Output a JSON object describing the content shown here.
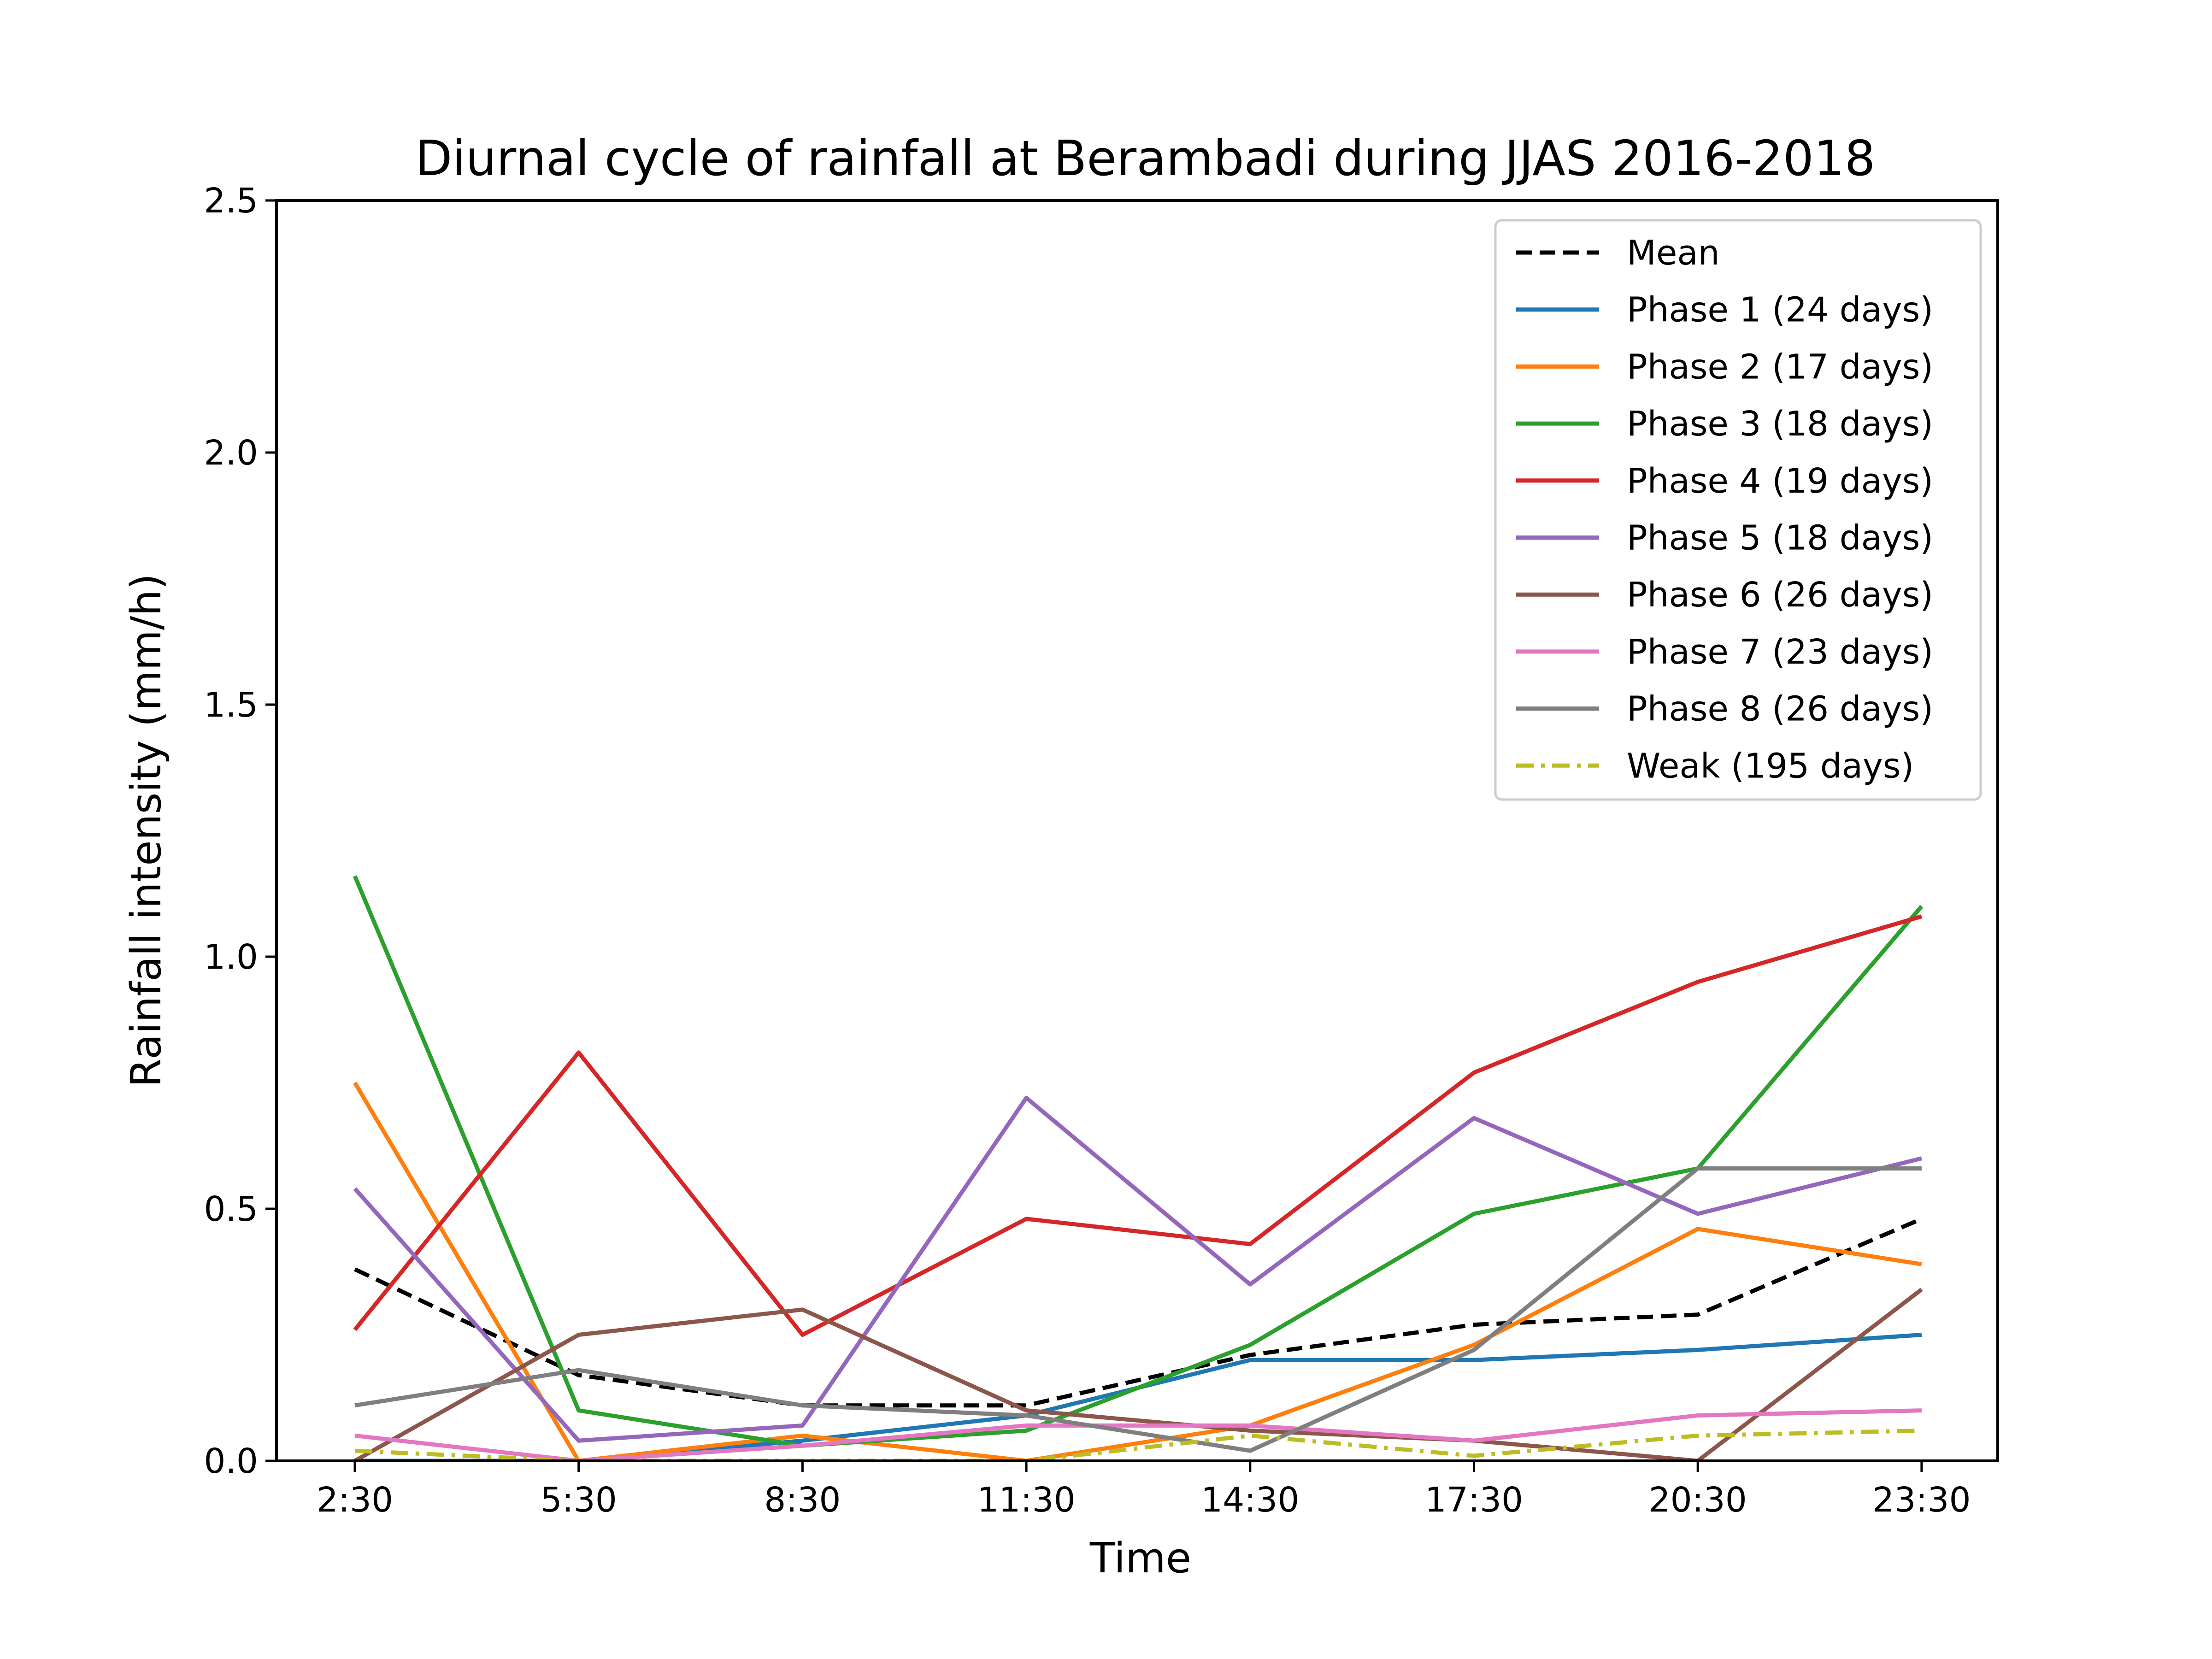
{
  "chart_data": {
    "type": "line",
    "title": "Diurnal cycle of rainfall at Berambadi during JJAS 2016-2018",
    "xlabel": "Time",
    "ylabel": "Rainfall intensity (mm/h)",
    "categories": [
      "2:30",
      "5:30",
      "8:30",
      "11:30",
      "14:30",
      "17:30",
      "20:30",
      "23:30"
    ],
    "ylim": [
      0,
      2.5
    ],
    "yticks": [
      "0.0",
      "0.5",
      "1.0",
      "1.5",
      "2.0",
      "2.5"
    ],
    "grid": false,
    "legend_position": "upper right",
    "series": [
      {
        "name": "Mean",
        "color": "#000000",
        "style": "dashed",
        "values": [
          0.38,
          0.17,
          0.11,
          0.11,
          0.21,
          0.27,
          0.29,
          0.48
        ]
      },
      {
        "name": "Phase 1 (24 days)",
        "color": "#1f77b4",
        "style": "solid",
        "values": [
          0.0,
          0.0,
          0.04,
          0.09,
          0.2,
          0.2,
          0.22,
          0.25
        ]
      },
      {
        "name": "Phase 2 (17 days)",
        "color": "#ff7f0e",
        "style": "solid",
        "values": [
          0.75,
          0.0,
          0.05,
          0.0,
          0.07,
          0.23,
          0.46,
          0.39
        ]
      },
      {
        "name": "Phase 3 (18 days)",
        "color": "#2ca02c",
        "style": "solid",
        "values": [
          1.16,
          0.1,
          0.03,
          0.06,
          0.23,
          0.49,
          0.58,
          1.1
        ]
      },
      {
        "name": "Phase 4 (19 days)",
        "color": "#d62728",
        "style": "solid",
        "values": [
          0.26,
          0.81,
          0.25,
          0.48,
          0.43,
          0.77,
          0.95,
          1.08
        ]
      },
      {
        "name": "Phase 5 (18 days)",
        "color": "#9467bd",
        "style": "solid",
        "values": [
          0.54,
          0.04,
          0.07,
          0.72,
          0.35,
          0.68,
          0.49,
          0.6
        ]
      },
      {
        "name": "Phase 6 (26 days)",
        "color": "#8c564b",
        "style": "solid",
        "values": [
          0.0,
          0.25,
          0.3,
          0.1,
          0.06,
          0.04,
          0.0,
          0.34
        ]
      },
      {
        "name": "Phase 7 (23 days)",
        "color": "#e377c2",
        "style": "solid",
        "values": [
          0.05,
          0.0,
          0.03,
          0.07,
          0.07,
          0.04,
          0.09,
          0.1
        ]
      },
      {
        "name": "Phase 8 (26 days)",
        "color": "#7f7f7f",
        "style": "solid",
        "values": [
          0.11,
          0.18,
          0.11,
          0.09,
          0.02,
          0.22,
          0.58,
          0.58
        ]
      },
      {
        "name": "Weak (195 days)",
        "color": "#bcbd22",
        "style": "dashdot",
        "values": [
          0.02,
          0.0,
          0.0,
          0.0,
          0.05,
          0.01,
          0.05,
          0.06
        ]
      }
    ]
  }
}
